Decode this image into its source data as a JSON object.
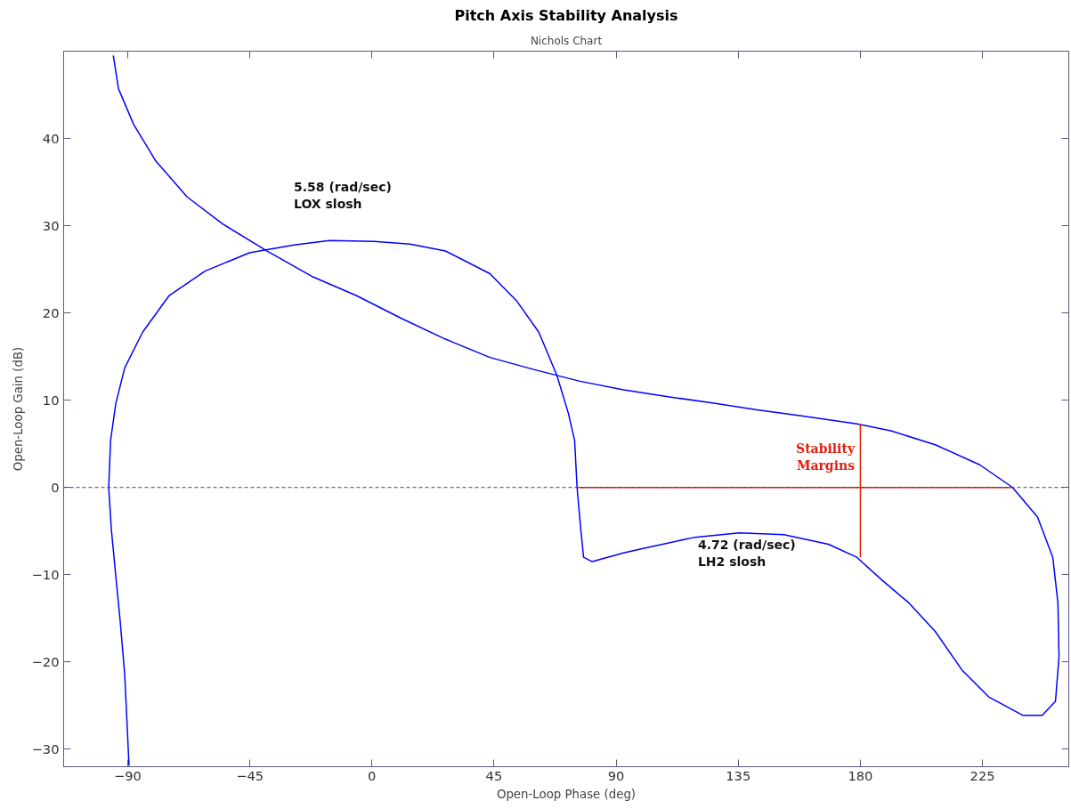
{
  "chart_data": {
    "type": "line",
    "title": "Pitch Axis Stability Analysis",
    "subtitle": "Nichols Chart",
    "xlabel": "Open-Loop Phase (deg)",
    "ylabel": "Open-Loop Gain (dB)",
    "xlim": [
      -113.6,
      256.8
    ],
    "ylim": [
      -32,
      50
    ],
    "xticks": [
      -90,
      -45,
      0,
      45,
      90,
      135,
      180,
      225
    ],
    "yticks": [
      -30,
      -20,
      -10,
      0,
      10,
      20,
      30,
      40
    ],
    "grid": false,
    "marker": "none",
    "line_style": "solid",
    "series": [
      {
        "color": "#0000ff",
        "x": [
          -95.3,
          -93.4,
          -87.8,
          -79.6,
          -68.1,
          -55.0,
          -38.6,
          -22.2,
          -5.8,
          10.7,
          27.1,
          43.5,
          59.9,
          76.3,
          92.7,
          109.1,
          125.5,
          141.9,
          158.3,
          178.7,
          191.2,
          207.6,
          224.0,
          236.1,
          245.3,
          250.9,
          252.8,
          253.2,
          251.9,
          247.0,
          239.8,
          227.3,
          217.4,
          207.6,
          197.8,
          187.9,
          178.7,
          168.2,
          151.8,
          135.4,
          119.0,
          102.6,
          92.7,
          81.2,
          78.0,
          77.0,
          75.6,
          74.7,
          72.4,
          68.1,
          61.5,
          53.3,
          43.5,
          27.1,
          14.0,
          0.8,
          -15.6,
          -28.7,
          -45.1,
          -61.5,
          -74.7,
          -84.5,
          -91.1,
          -94.4,
          -96.3,
          -97.0,
          -96.0,
          -94.4,
          -92.8,
          -91.1,
          -89.5
        ],
        "values": [
          49.5,
          45.7,
          41.6,
          37.4,
          33.3,
          30.2,
          27.1,
          24.2,
          22.0,
          19.4,
          17.0,
          14.9,
          13.5,
          12.2,
          11.2,
          10.4,
          9.7,
          8.9,
          8.2,
          7.3,
          6.5,
          4.9,
          2.6,
          0,
          -3.4,
          -8.0,
          -13.2,
          -19.4,
          -24.5,
          -26.1,
          -26.1,
          -24.0,
          -20.9,
          -16.5,
          -13.2,
          -10.6,
          -8.0,
          -6.5,
          -5.4,
          -5.2,
          -5.7,
          -6.8,
          -7.5,
          -8.5,
          -8.0,
          -4.9,
          0,
          5.4,
          8.5,
          12.9,
          17.8,
          21.4,
          24.5,
          27.1,
          27.9,
          28.2,
          28.3,
          27.8,
          26.9,
          24.8,
          22.0,
          17.8,
          13.7,
          9.6,
          5.4,
          0,
          -4.9,
          -10.1,
          -15.2,
          -21.4,
          -31.9
        ]
      },
      {
        "color": "#ee2200",
        "x": [
          75.6,
          236.1
        ],
        "values": [
          0,
          0
        ]
      },
      {
        "color": "#ee2200",
        "x": [
          180,
          180
        ],
        "values": [
          7.3,
          -8.0
        ]
      }
    ],
    "ref_lines": [
      {
        "axis": "y",
        "value": 0,
        "color": "#404070",
        "line_style": "dashed"
      }
    ],
    "annotations": [
      "5.58 (rad/sec)\nLOX slosh",
      "4.72 (rad/sec)\nLH2 slosh",
      "Stability\nMargins"
    ]
  }
}
